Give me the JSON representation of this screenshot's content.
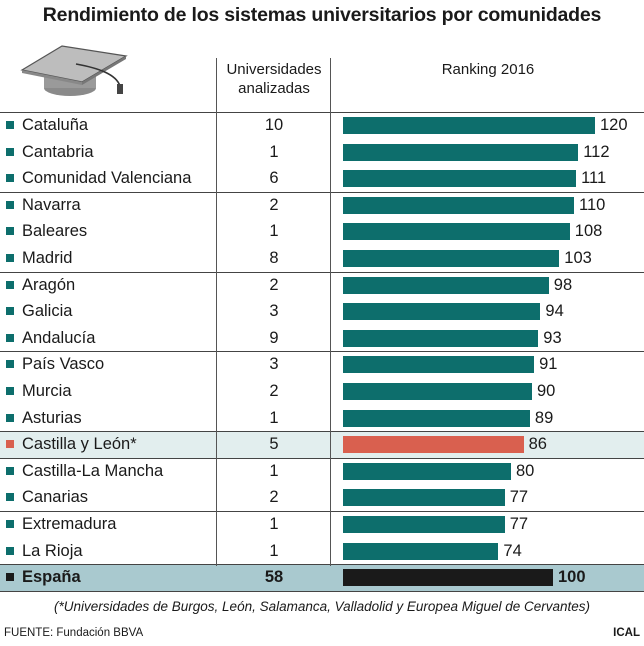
{
  "title": "Rendimiento de los sistemas universitarios por comunidades",
  "header": {
    "universities_line1": "Universidades",
    "universities_line2": "analizadas",
    "ranking": "Ranking 2016",
    "cap_icon": "graduation-cap-icon"
  },
  "colors": {
    "teal": "#0d6e6c",
    "highlight": "#d9604f",
    "total": "#1a1a1a",
    "highlight_band": "#e2eeee",
    "total_band": "#a9c9cf"
  },
  "chart_data": {
    "type": "bar",
    "orientation": "horizontal",
    "xlim": [
      0,
      120
    ],
    "categories": [
      "Cataluña",
      "Cantabria",
      "Comunidad Valenciana",
      "Navarra",
      "Baleares",
      "Madrid",
      "Aragón",
      "Galicia",
      "Andalucía",
      "País Vasco",
      "Murcia",
      "Asturias",
      "Castilla y León*",
      "Castilla-La Mancha",
      "Canarias",
      "Extremadura",
      "La Rioja",
      "España"
    ],
    "universities": [
      10,
      1,
      6,
      2,
      1,
      8,
      2,
      3,
      9,
      3,
      2,
      1,
      5,
      1,
      2,
      1,
      1,
      58
    ],
    "values": [
      120,
      112,
      111,
      110,
      108,
      103,
      98,
      94,
      93,
      91,
      90,
      89,
      86,
      80,
      77,
      77,
      74,
      100
    ],
    "highlight_index": 12,
    "total_index": 17
  },
  "footnote": "(*Universidades de Burgos, León, Salamanca, Valladolid y Europea Miguel de Cervantes)",
  "source": "FUENTE: Fundación BBVA",
  "credit": "ICAL"
}
